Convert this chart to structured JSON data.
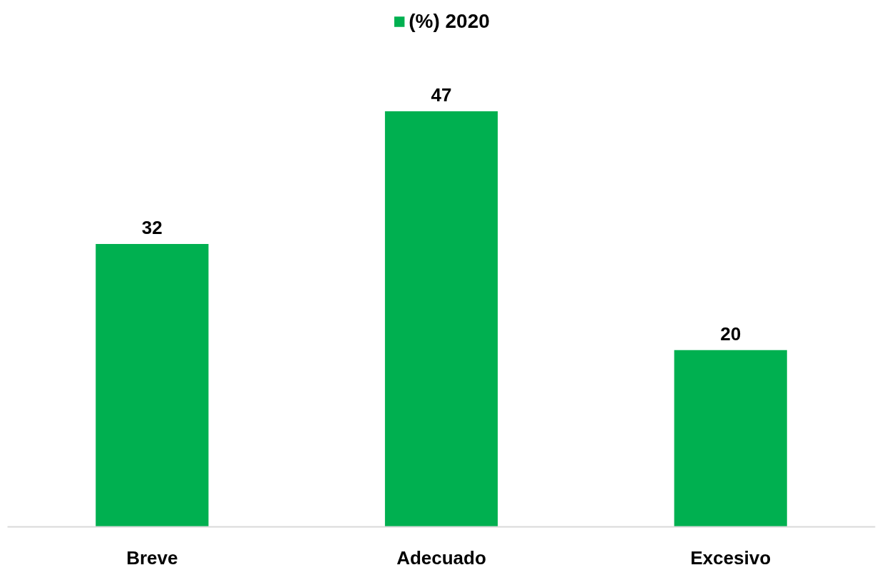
{
  "chart_data": {
    "type": "bar",
    "categories": [
      "Breve",
      "Adecuado",
      "Excesivo"
    ],
    "series": [
      {
        "name": "(%) 2020",
        "color": "#00b050",
        "values": [
          32,
          47,
          20
        ]
      }
    ],
    "data_labels": true,
    "grid": false,
    "legend": "top"
  }
}
